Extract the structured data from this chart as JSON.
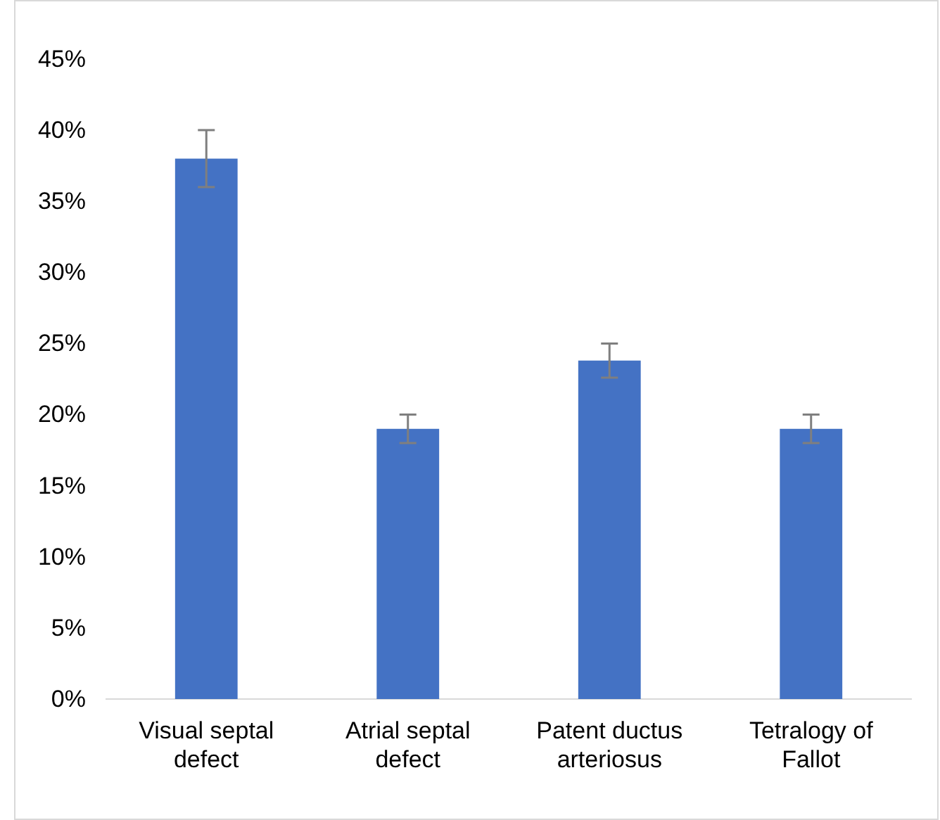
{
  "chart_data": {
    "type": "bar",
    "categories": [
      "Visual septal defect",
      "Atrial septal defect",
      "Patent ductus arteriosus",
      "Tetralogy of Fallot"
    ],
    "values": [
      38,
      19,
      23.8,
      19
    ],
    "errors": [
      2,
      1,
      1.2,
      1
    ],
    "color": "#4472c4",
    "ylim": [
      0,
      45
    ],
    "yticks": [
      {
        "value": 0,
        "label": "0%"
      },
      {
        "value": 5,
        "label": "5%"
      },
      {
        "value": 10,
        "label": "10%"
      },
      {
        "value": 15,
        "label": "15%"
      },
      {
        "value": 20,
        "label": "20%"
      },
      {
        "value": 25,
        "label": "25%"
      },
      {
        "value": 30,
        "label": "30%"
      },
      {
        "value": 35,
        "label": "35%"
      },
      {
        "value": 40,
        "label": "40%"
      },
      {
        "value": 45,
        "label": "45%"
      }
    ],
    "grid": false
  }
}
